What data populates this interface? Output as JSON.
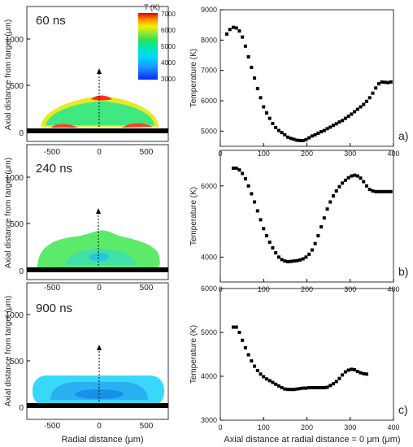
{
  "figure": {
    "left_xlabel": "Radial distance (μm)",
    "right_xlabel": "Axial distance at radial distance = 0 μm (μm)"
  },
  "colorbar": {
    "title": "T (K)",
    "ticks": [
      "7000",
      "6000",
      "5000",
      "4000",
      "3000"
    ],
    "colors": [
      "#0a2aff",
      "#1e90ff",
      "#00c8ff",
      "#00e8c0",
      "#20d860",
      "#7ce040",
      "#f0f000",
      "#ffa000",
      "#ff5020",
      "#e00000"
    ]
  },
  "maps": [
    {
      "time_label": "60 ns",
      "ylabel": "Axial distance from target (μm)",
      "xticks": [
        "-500",
        "0",
        "500"
      ],
      "yticks": [
        "0",
        "500",
        "1000"
      ],
      "dominant_color": "#40e880"
    },
    {
      "time_label": "240 ns",
      "ylabel": "Axial distance from target (μm)",
      "xticks": [
        "-500",
        "0",
        "500"
      ],
      "yticks": [
        "0",
        "500",
        "1000"
      ],
      "dominant_color": "#5cea6a"
    },
    {
      "time_label": "900 ns",
      "ylabel": "Axial distance from target (μm)",
      "xticks": [
        "-500",
        "0",
        "500"
      ],
      "yticks": [
        "0",
        "500",
        "1000"
      ],
      "dominant_color": "#38d8f8"
    }
  ],
  "chart_data": [
    {
      "type": "scatter",
      "panel": "a)",
      "ylabel": "Temperature (K)",
      "xlim": [
        0,
        400
      ],
      "ylim": [
        4500,
        9000
      ],
      "xticks": [
        "0",
        "100",
        "200",
        "300",
        "400"
      ],
      "yticks": [
        "5000",
        "6000",
        "7000",
        "8000",
        "9000"
      ],
      "x": [
        15,
        22,
        30,
        37,
        44,
        51,
        58,
        65,
        72,
        79,
        86,
        93,
        100,
        107,
        114,
        121,
        128,
        135,
        142,
        149,
        156,
        163,
        170,
        177,
        184,
        191,
        198,
        205,
        212,
        219,
        226,
        233,
        240,
        247,
        254,
        261,
        268,
        275,
        282,
        289,
        296,
        303,
        310,
        317,
        324,
        331,
        338,
        345,
        352,
        359,
        366,
        373,
        380,
        387,
        394
      ],
      "values": [
        8200,
        8350,
        8420,
        8400,
        8300,
        8100,
        7800,
        7450,
        7100,
        6750,
        6400,
        6100,
        5800,
        5600,
        5420,
        5250,
        5120,
        5020,
        4950,
        4880,
        4800,
        4760,
        4730,
        4700,
        4690,
        4690,
        4720,
        4780,
        4840,
        4880,
        4930,
        4980,
        5020,
        5080,
        5130,
        5190,
        5240,
        5300,
        5350,
        5420,
        5490,
        5560,
        5640,
        5720,
        5800,
        5880,
        5980,
        6100,
        6250,
        6420,
        6560,
        6620,
        6610,
        6600,
        6620
      ]
    },
    {
      "type": "scatter",
      "panel": "b)",
      "ylabel": "Temperature (K)",
      "xlim": [
        0,
        400
      ],
      "ylim": [
        3300,
        7000
      ],
      "xticks": [
        "0",
        "100",
        "200",
        "300",
        "400"
      ],
      "yticks": [
        "4000",
        "6000"
      ],
      "x": [
        30,
        37,
        44,
        51,
        58,
        65,
        72,
        79,
        86,
        93,
        100,
        107,
        114,
        121,
        128,
        135,
        142,
        149,
        156,
        163,
        170,
        177,
        184,
        191,
        198,
        205,
        212,
        219,
        226,
        233,
        240,
        247,
        254,
        261,
        268,
        275,
        282,
        289,
        296,
        303,
        310,
        317,
        324,
        331,
        338,
        345,
        352,
        359,
        366,
        373,
        380,
        387,
        394
      ],
      "values": [
        6500,
        6500,
        6450,
        6350,
        6200,
        6000,
        5780,
        5550,
        5300,
        5050,
        4800,
        4600,
        4420,
        4260,
        4120,
        4000,
        3930,
        3890,
        3870,
        3880,
        3890,
        3900,
        3920,
        3950,
        4000,
        4080,
        4200,
        4380,
        4600,
        4850,
        5100,
        5350,
        5550,
        5720,
        5860,
        5980,
        6080,
        6160,
        6230,
        6280,
        6300,
        6280,
        6220,
        6120,
        6000,
        5900,
        5860,
        5840,
        5840,
        5840,
        5840,
        5840,
        5840
      ]
    },
    {
      "type": "scatter",
      "panel": "c)",
      "ylabel": "Temperature (K)",
      "xlim": [
        0,
        400
      ],
      "ylim": [
        3000,
        6000
      ],
      "xticks": [
        "0",
        "100",
        "200",
        "300",
        "400"
      ],
      "yticks": [
        "3000",
        "4000",
        "5000",
        "6000"
      ],
      "x": [
        30,
        37,
        44,
        51,
        58,
        65,
        72,
        79,
        86,
        93,
        100,
        107,
        114,
        121,
        128,
        135,
        142,
        149,
        156,
        163,
        170,
        177,
        184,
        191,
        198,
        205,
        212,
        219,
        226,
        233,
        240,
        247,
        254,
        261,
        268,
        275,
        282,
        289,
        296,
        303,
        310,
        317,
        324,
        331,
        338
      ],
      "values": [
        5120,
        5120,
        5000,
        4820,
        4650,
        4490,
        4350,
        4230,
        4130,
        4050,
        3990,
        3940,
        3900,
        3860,
        3820,
        3780,
        3740,
        3710,
        3700,
        3700,
        3700,
        3710,
        3720,
        3730,
        3730,
        3740,
        3740,
        3740,
        3740,
        3740,
        3740,
        3750,
        3790,
        3830,
        3880,
        3950,
        4030,
        4100,
        4140,
        4160,
        4150,
        4110,
        4080,
        4060,
        4050
      ]
    }
  ]
}
